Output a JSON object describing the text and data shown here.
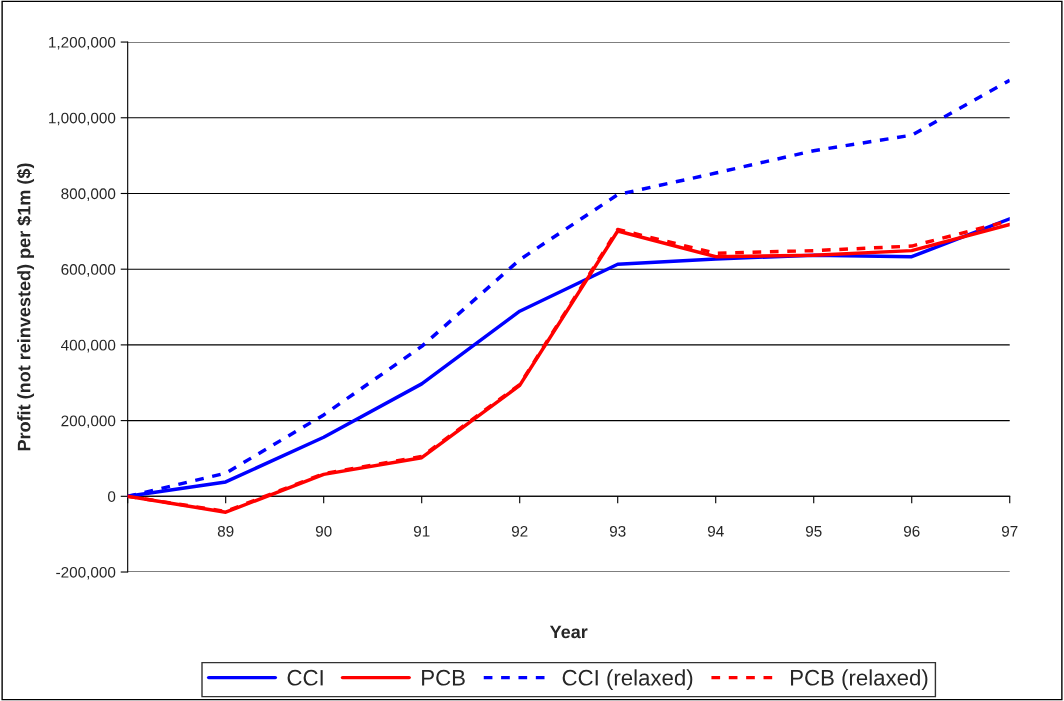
{
  "chart_data": {
    "type": "line",
    "xlabel": "Year",
    "ylabel": "Profit (not reinvested) per $1m ($)",
    "categories": [
      null,
      "89",
      "90",
      "91",
      "92",
      "93",
      "94",
      "95",
      "96",
      "97"
    ],
    "series": [
      {
        "name": "CCI",
        "color": "#0000ff",
        "line_style": "solid",
        "values": [
          0,
          38000,
          156000,
          297000,
          489000,
          613000,
          627000,
          637000,
          633000,
          733000
        ]
      },
      {
        "name": "PCB",
        "color": "#ff0000",
        "line_style": "solid",
        "values": [
          0,
          -42000,
          58000,
          102000,
          293000,
          701000,
          633000,
          637000,
          649000,
          718000
        ]
      },
      {
        "name": "CCI (relaxed)",
        "color": "#0000ff",
        "line_style": "dashed",
        "values": [
          0,
          61000,
          215000,
          396000,
          625000,
          797000,
          854000,
          913000,
          954000,
          1099000
        ]
      },
      {
        "name": "PCB (relaxed)",
        "color": "#ff0000",
        "line_style": "dashed",
        "values": [
          0,
          -40000,
          60000,
          105000,
          295000,
          705000,
          642000,
          649000,
          661000,
          728000
        ]
      }
    ],
    "ylim": [
      -200000,
      1200000
    ],
    "yticks": [
      {
        "value": -200000,
        "label": "-200,000"
      },
      0,
      {
        "value": 200000,
        "label": "200,000"
      },
      {
        "value": 400000,
        "label": "400,000"
      },
      {
        "value": 600000,
        "label": "600,000"
      },
      {
        "value": 800000,
        "label": "800,000"
      },
      {
        "value": 1000000,
        "label": "1,000,000"
      },
      {
        "value": 1200000,
        "label": "1,200,000"
      }
    ],
    "grid": "y",
    "legend": "bottom",
    "marker": "none"
  }
}
